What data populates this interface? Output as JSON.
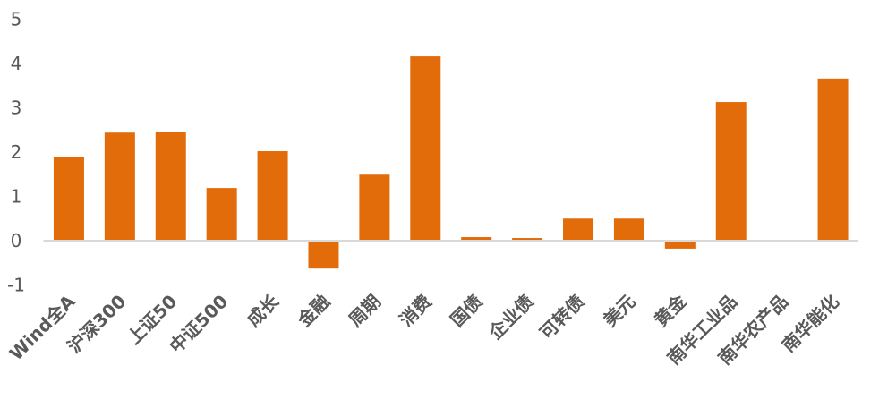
{
  "chart_data": {
    "type": "bar",
    "categories": [
      "Wind全A",
      "沪深300",
      "上证50",
      "中证500",
      "成长",
      "金融",
      "周期",
      "消费",
      "国债",
      "企业债",
      "可转债",
      "美元",
      "黄金",
      "南华工业品",
      "南华农产品",
      "南华能化"
    ],
    "values": [
      1.88,
      2.44,
      2.46,
      1.19,
      2.02,
      -0.63,
      1.49,
      4.16,
      0.08,
      0.06,
      0.5,
      0.5,
      -0.18,
      3.13,
      0.0,
      3.66
    ],
    "title": "",
    "xlabel": "",
    "ylabel": "",
    "ylim": [
      -1,
      5
    ],
    "yticks": [
      -1,
      0,
      1,
      2,
      3,
      4,
      5
    ],
    "grid": false,
    "legend": "none",
    "colors": {
      "bar": "#E36C0A",
      "axis": "#D9D9D9",
      "text": "#595959"
    }
  }
}
